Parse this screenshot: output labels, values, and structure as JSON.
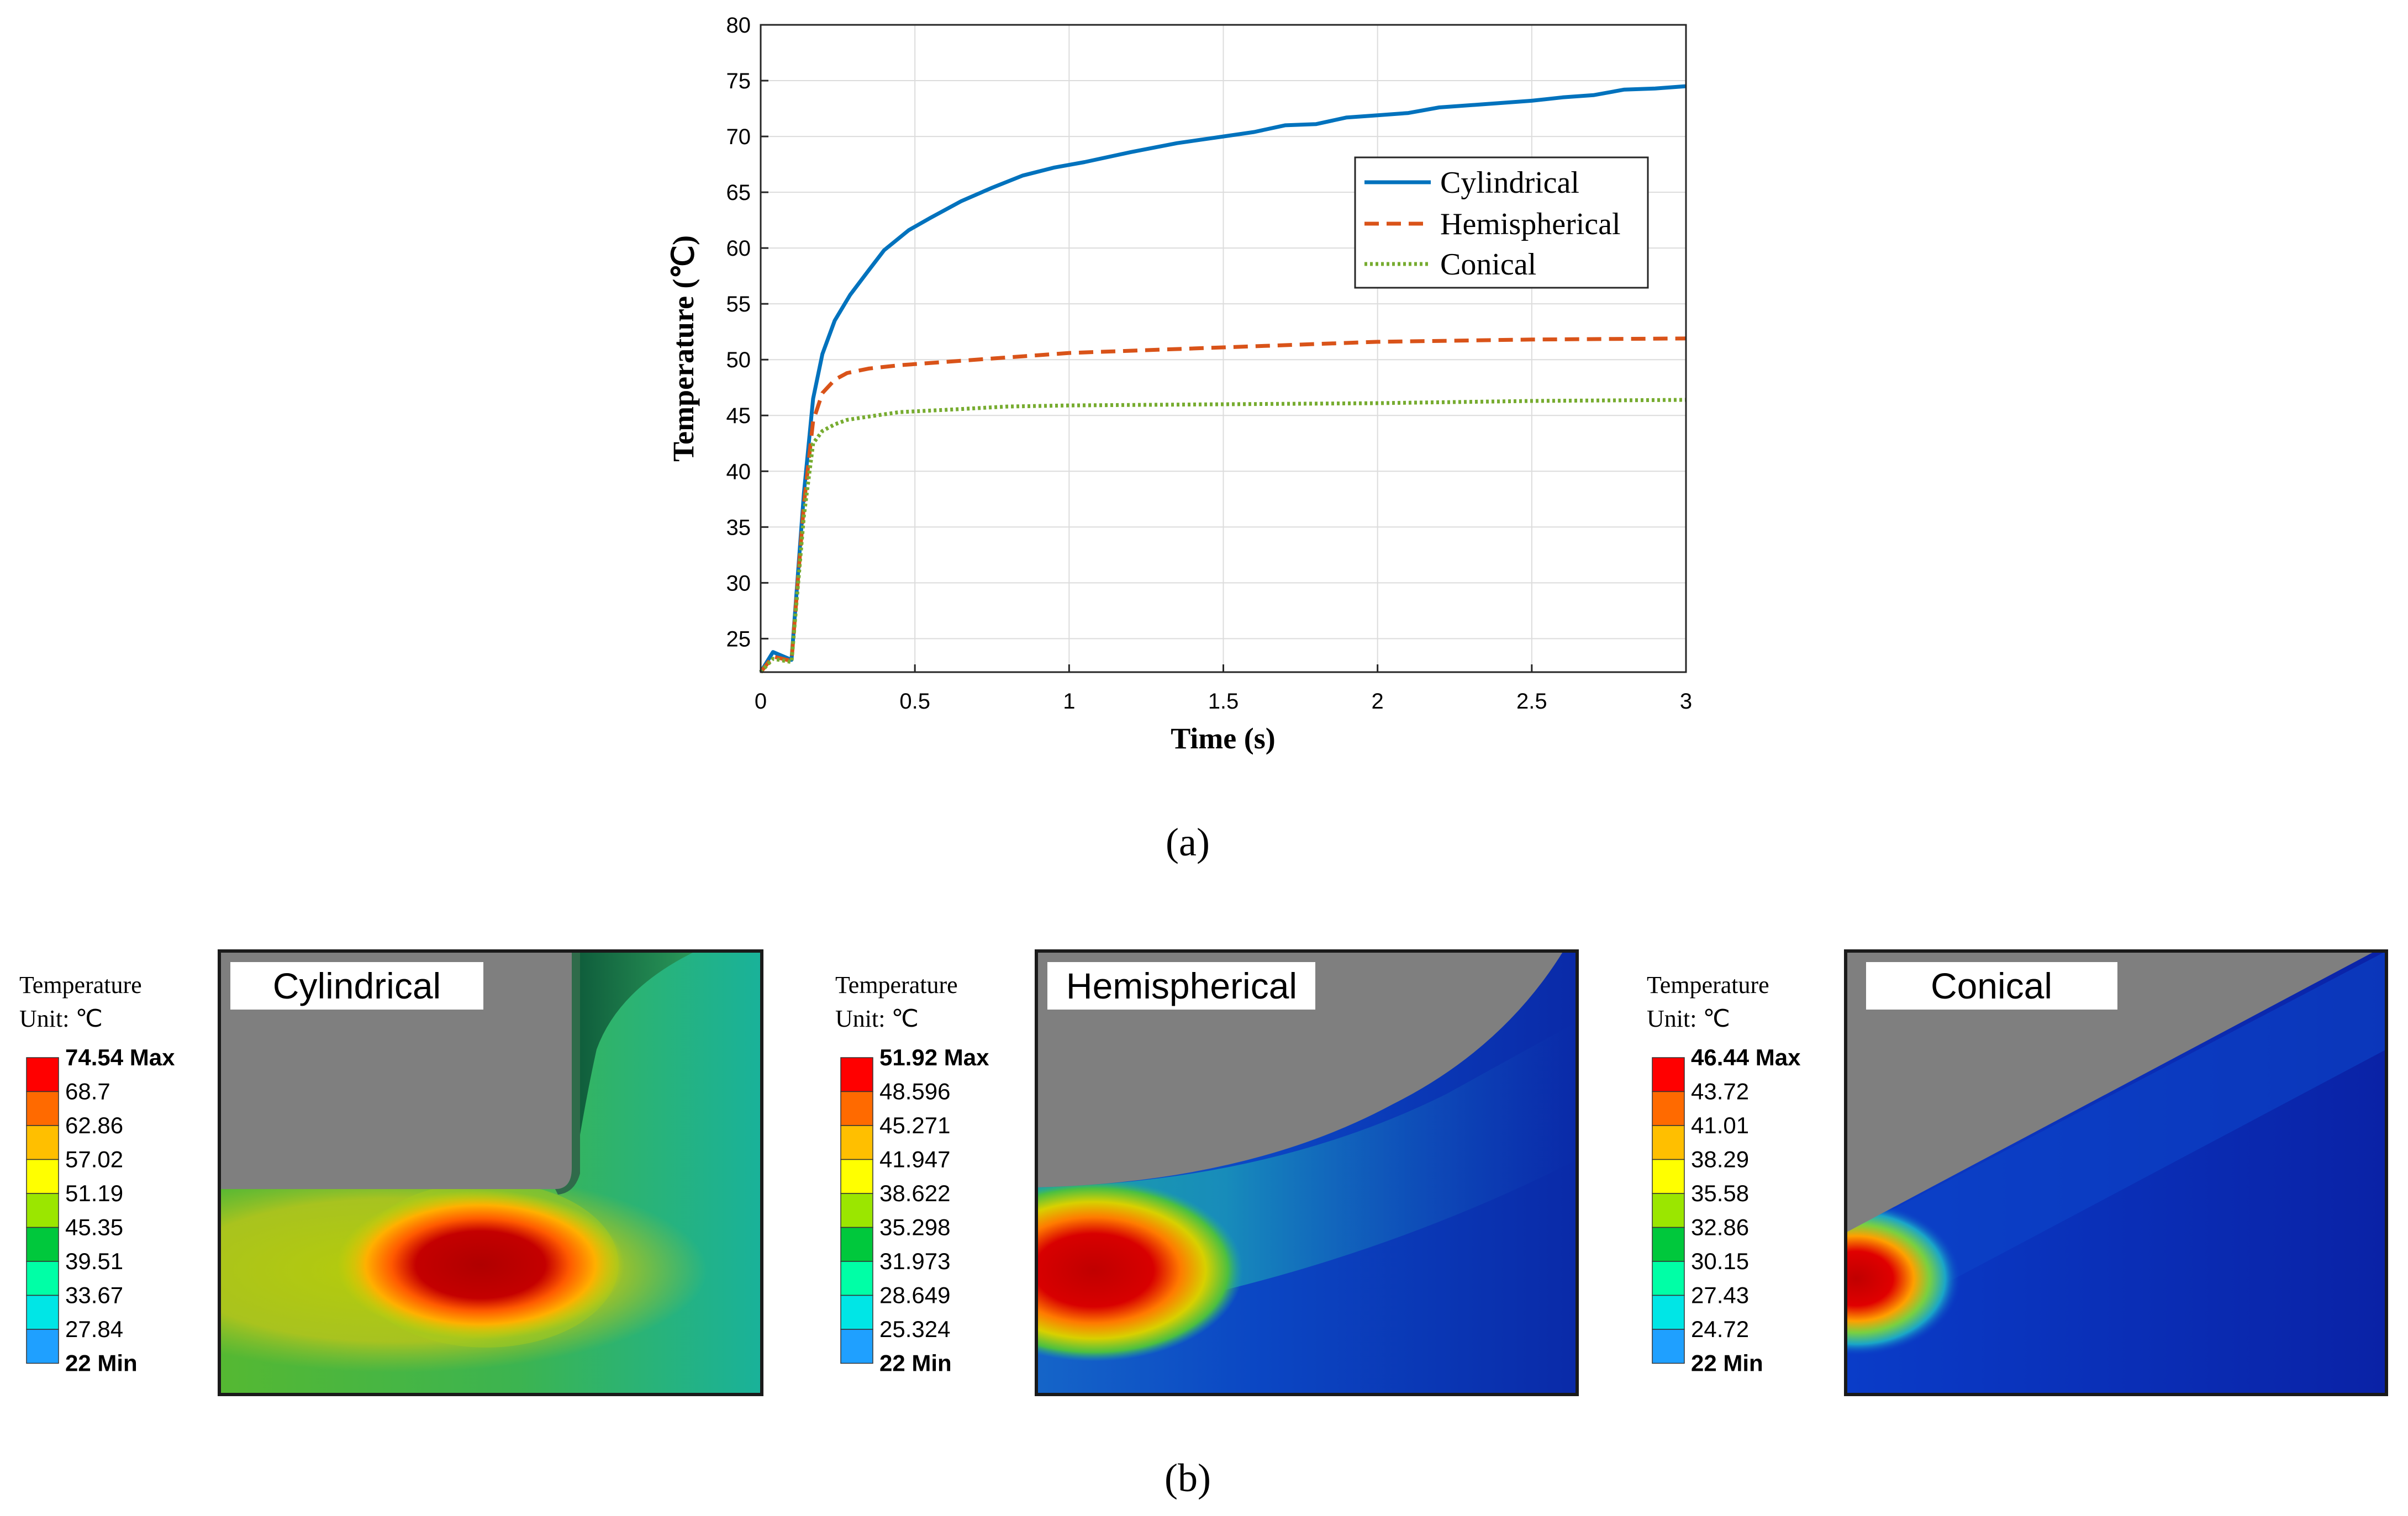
{
  "colors": {
    "cylindrical": "#0072BD",
    "hemispherical": "#D95319",
    "conical": "#77AC30",
    "grid": "#dcdcdc",
    "body_gray": "#7f7f7f",
    "colormap": [
      "#0000ff",
      "#1fa0ff",
      "#00e6e6",
      "#00ffa6",
      "#00c83c",
      "#9be600",
      "#ffff00",
      "#ffbf00",
      "#ff6a00",
      "#ff0000"
    ]
  },
  "chart_data": {
    "type": "line",
    "title": "",
    "xlabel": "Time (s)",
    "ylabel": "Temperature (℃)",
    "xlim": [
      0,
      3
    ],
    "ylim": [
      22,
      80
    ],
    "grid": true,
    "legend_position": "upper-right",
    "xticks": [
      0,
      0.5,
      1,
      1.5,
      2,
      2.5,
      3
    ],
    "xtick_labels": [
      "0",
      "0.5",
      "1",
      "1.5",
      "2",
      "2.5",
      "3"
    ],
    "yticks": [
      25,
      30,
      35,
      40,
      45,
      50,
      55,
      60,
      65,
      70,
      75,
      80
    ],
    "ytick_labels": [
      "25",
      "30",
      "35",
      "40",
      "45",
      "50",
      "55",
      "60",
      "65",
      "70",
      "75",
      "80"
    ],
    "series": [
      {
        "name": "Cylindrical",
        "style": "solid",
        "x": [
          0,
          0.04,
          0.1,
          0.12,
          0.14,
          0.17,
          0.2,
          0.24,
          0.29,
          0.35,
          0.4,
          0.48,
          0.55,
          0.65,
          0.75,
          0.85,
          0.95,
          1.05,
          1.2,
          1.35,
          1.5,
          1.6,
          1.7,
          1.8,
          1.9,
          2.0,
          2.1,
          2.2,
          2.35,
          2.5,
          2.6,
          2.7,
          2.8,
          2.9,
          3.0
        ],
        "y": [
          22,
          23.8,
          23.1,
          30.5,
          38,
          46.5,
          50.5,
          53.5,
          55.8,
          58,
          59.8,
          61.6,
          62.7,
          64.2,
          65.4,
          66.5,
          67.2,
          67.7,
          68.6,
          69.4,
          70,
          70.4,
          71,
          71.1,
          71.7,
          71.9,
          72.1,
          72.6,
          72.9,
          73.2,
          73.5,
          73.7,
          74.2,
          74.3,
          74.5
        ]
      },
      {
        "name": "Hemispherical",
        "style": "dashed",
        "x": [
          0,
          0.04,
          0.1,
          0.12,
          0.14,
          0.17,
          0.2,
          0.24,
          0.28,
          0.35,
          0.45,
          0.6,
          0.8,
          1.0,
          1.5,
          2.0,
          2.5,
          3.0
        ],
        "y": [
          22,
          23.4,
          23.0,
          30,
          37,
          44.5,
          47.0,
          48.2,
          48.8,
          49.2,
          49.5,
          49.8,
          50.2,
          50.6,
          51.1,
          51.6,
          51.8,
          51.9
        ]
      },
      {
        "name": "Conical",
        "style": "dotted",
        "x": [
          0,
          0.04,
          0.1,
          0.12,
          0.14,
          0.17,
          0.2,
          0.24,
          0.28,
          0.35,
          0.45,
          0.6,
          0.8,
          1.0,
          1.5,
          2.0,
          2.5,
          3.0
        ],
        "y": [
          22,
          23.2,
          22.9,
          29.5,
          36,
          42.5,
          43.6,
          44.2,
          44.6,
          44.9,
          45.3,
          45.5,
          45.8,
          45.9,
          46.0,
          46.1,
          46.3,
          46.4
        ]
      }
    ]
  },
  "caption_a": "(a)",
  "caption_b": "(b)",
  "panels": [
    {
      "label": "Cylindrical",
      "legend_title": "Temperature",
      "legend_unit": "Unit: ℃",
      "levels": [
        "74.54 Max",
        "68.7",
        "62.86",
        "57.02",
        "51.19",
        "45.35",
        "39.51",
        "33.67",
        "27.84",
        "22 Min"
      ]
    },
    {
      "label": "Hemispherical",
      "legend_title": "Temperature",
      "legend_unit": "Unit: ℃",
      "levels": [
        "51.92 Max",
        "48.596",
        "45.271",
        "41.947",
        "38.622",
        "35.298",
        "31.973",
        "28.649",
        "25.324",
        "22 Min"
      ]
    },
    {
      "label": "Conical",
      "legend_title": "Temperature",
      "legend_unit": "Unit: ℃",
      "levels": [
        "46.44 Max",
        "43.72",
        "41.01",
        "38.29",
        "35.58",
        "32.86",
        "30.15",
        "27.43",
        "24.72",
        "22 Min"
      ]
    }
  ]
}
